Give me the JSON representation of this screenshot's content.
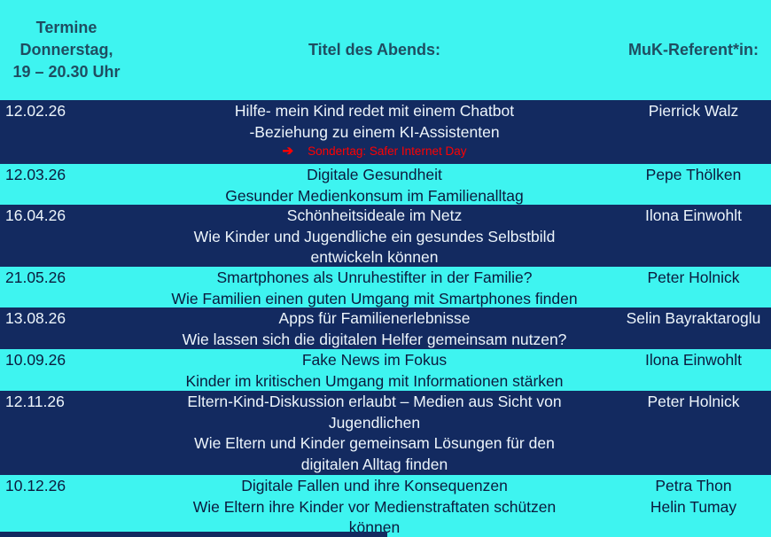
{
  "colors": {
    "cyan": "#3EF4F0",
    "navy": "#132A60",
    "header_text": "#1F4D61",
    "dark_text": "#0B1B3E",
    "light_text": "#EDF5FB",
    "red": "#FF0000"
  },
  "table": {
    "header": {
      "termine_lines": [
        "Termine",
        "Donnerstag,",
        "19 – 20.30 Uhr"
      ],
      "titel": "Titel des Abends:",
      "referent": "MuK-Referent*in:"
    },
    "rows": [
      {
        "variant": "dark",
        "date": "12.02.26",
        "title_lines": [
          "Hilfe- mein Kind redet mit einem Chatbot",
          "-Beziehung zu einem KI-Assistenten"
        ],
        "note_arrow": "➔",
        "note_text": "Sondertag: Safer Internet Day",
        "referent_lines": [
          "Pierrick Walz"
        ]
      },
      {
        "variant": "light",
        "date": "12.03.26",
        "title_lines": [
          "Digitale Gesundheit",
          "Gesunder Medienkonsum im Familienalltag"
        ],
        "referent_lines": [
          "Pepe Thölken"
        ]
      },
      {
        "variant": "dark",
        "date": "16.04.26",
        "title_lines": [
          "Schönheitsideale im Netz",
          "Wie Kinder und Jugendliche ein gesundes Selbstbild",
          "entwickeln können"
        ],
        "referent_lines": [
          "Ilona Einwohlt"
        ]
      },
      {
        "variant": "light",
        "date": "21.05.26",
        "title_lines": [
          "Smartphones als Unruhestifter in der Familie?",
          "Wie Familien einen guten Umgang mit Smartphones finden"
        ],
        "referent_lines": [
          "Peter Holnick"
        ]
      },
      {
        "variant": "dark",
        "date": "13.08.26",
        "title_lines": [
          "Apps für Familienerlebnisse",
          "Wie lassen sich die digitalen Helfer gemeinsam nutzen?"
        ],
        "referent_lines": [
          "Selin Bayraktaroglu"
        ]
      },
      {
        "variant": "light",
        "date": "10.09.26",
        "title_lines": [
          "Fake News im Fokus",
          "Kinder im kritischen Umgang mit Informationen stärken"
        ],
        "referent_lines": [
          "Ilona Einwohlt"
        ]
      },
      {
        "variant": "dark",
        "date": "12.11.26",
        "title_lines": [
          "Eltern-Kind-Diskussion erlaubt – Medien aus Sicht von",
          "Jugendlichen",
          "Wie Eltern und Kinder gemeinsam Lösungen für den",
          "digitalen Alltag finden"
        ],
        "referent_lines": [
          "Peter Holnick"
        ]
      },
      {
        "variant": "light",
        "date": "10.12.26",
        "title_lines": [
          "Digitale Fallen und ihre Konsequenzen",
          "Wie Eltern ihre Kinder vor Medienstraftaten schützen",
          "können"
        ],
        "referent_lines": [
          "Petra Thon",
          "Helin Tumay"
        ]
      }
    ]
  }
}
